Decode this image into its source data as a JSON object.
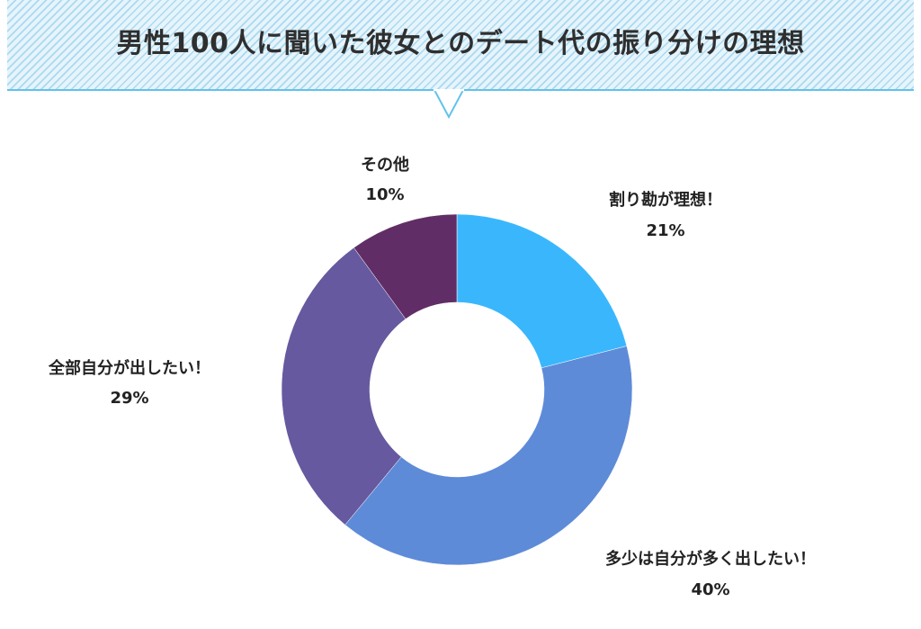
{
  "title": "男性100人に聞いた彼女とのデート代の振り分けの理想",
  "colors": {
    "banner_border": "#62c2ec",
    "label_text": "#222222"
  },
  "chart_data": {
    "type": "pie",
    "variant": "donut",
    "title": "男性100人に聞いた彼女とのデート代の振り分けの理想",
    "slices": [
      {
        "label": "割り勘が理想！",
        "value": 21,
        "value_label": "21%",
        "color": "#3ab7fc"
      },
      {
        "label": "多少は自分が多く出したい！",
        "value": 40,
        "value_label": "40%",
        "color": "#5e8bd8"
      },
      {
        "label": "全部自分が出したい！",
        "value": 29,
        "value_label": "29%",
        "color": "#66599f"
      },
      {
        "label": "その他",
        "value": 10,
        "value_label": "10%",
        "color": "#612d66"
      }
    ]
  }
}
